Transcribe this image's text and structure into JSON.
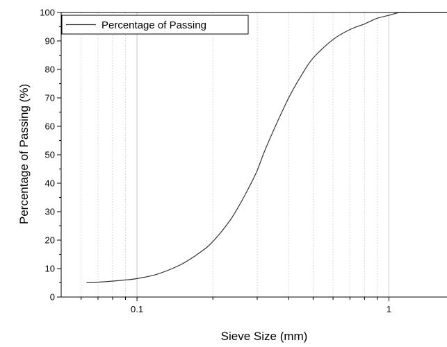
{
  "chart_data": {
    "type": "line",
    "title": "",
    "xlabel": "Sieve Size (mm)",
    "ylabel": "Percentage of Passing (%)",
    "x_scale": "log",
    "xlim": [
      0.05,
      1.7
    ],
    "ylim": [
      0,
      100
    ],
    "x_ticks": [
      {
        "value": 0.1,
        "label": "0.1"
      },
      {
        "value": 1,
        "label": "1"
      }
    ],
    "y_ticks": [
      {
        "value": 0,
        "label": "0"
      },
      {
        "value": 10,
        "label": "10"
      },
      {
        "value": 20,
        "label": "20"
      },
      {
        "value": 30,
        "label": "30"
      },
      {
        "value": 40,
        "label": "40"
      },
      {
        "value": 50,
        "label": "50"
      },
      {
        "value": 60,
        "label": "60"
      },
      {
        "value": 70,
        "label": "70"
      },
      {
        "value": 80,
        "label": "80"
      },
      {
        "value": 90,
        "label": "90"
      },
      {
        "value": 100,
        "label": "100"
      }
    ],
    "grid": "vertical dotted at log subdivisions, solid at decades",
    "legend": {
      "position": "top-left",
      "entries": [
        "Percentage of Passing"
      ]
    },
    "series": [
      {
        "name": "Percentage of Passing",
        "color": "#333333",
        "x": [
          0.063,
          0.075,
          0.09,
          0.1,
          0.12,
          0.15,
          0.18,
          0.2,
          0.23,
          0.25,
          0.28,
          0.3,
          0.32,
          0.35,
          0.4,
          0.45,
          0.5,
          0.6,
          0.7,
          0.8,
          0.9,
          1.0,
          1.1,
          1.18
        ],
        "y": [
          5,
          5.4,
          6,
          6.5,
          8,
          11.5,
          16,
          19.5,
          26,
          31,
          39,
          44.5,
          51,
          59,
          70,
          78,
          84,
          90.5,
          94,
          96,
          98,
          99,
          100,
          100
        ]
      }
    ]
  }
}
